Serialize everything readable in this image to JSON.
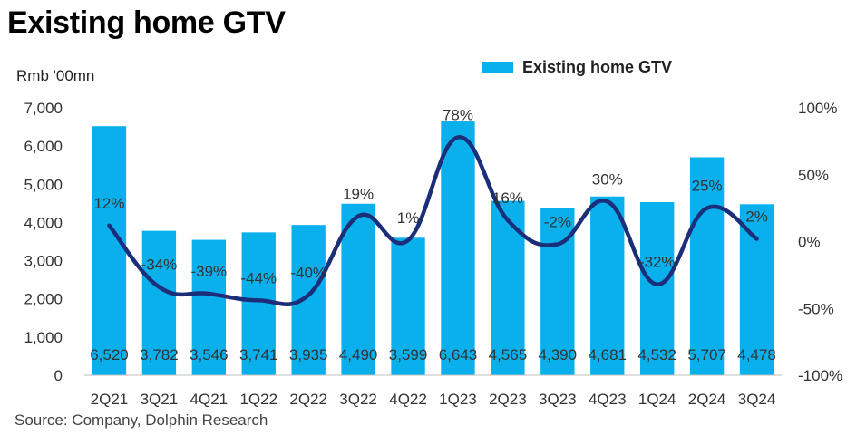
{
  "title": "Existing home GTV",
  "unit_label": "Rmb '00mn",
  "source": "Source: Company, Dolphin Research",
  "colors": {
    "bar": "#0ab0ec",
    "line": "#1a2e7a",
    "text": "#333333"
  },
  "chart_data": {
    "type": "bar",
    "categories": [
      "2Q21",
      "3Q21",
      "4Q21",
      "1Q22",
      "2Q22",
      "3Q22",
      "4Q22",
      "1Q23",
      "2Q23",
      "3Q23",
      "4Q23",
      "1Q24",
      "2Q24",
      "3Q24"
    ],
    "series": [
      {
        "name": "Existing home GTV",
        "type": "bar",
        "axis": "left",
        "values": [
          6520,
          3782,
          3546,
          3741,
          3935,
          4490,
          3599,
          6643,
          4565,
          4390,
          4681,
          4532,
          5707,
          4478
        ],
        "labels": [
          "6,520",
          "3,782",
          "3,546",
          "3,741",
          "3,935",
          "4,490",
          "3,599",
          "6,643",
          "4,565",
          "4,390",
          "4,681",
          "4,532",
          "5,707",
          "4,478"
        ]
      },
      {
        "type": "line",
        "axis": "right",
        "smooth": true,
        "values": [
          12,
          -34,
          -39,
          -44,
          -40,
          19,
          1,
          78,
          16,
          -2,
          30,
          -32,
          25,
          2
        ],
        "labels": [
          "12%",
          "-34%",
          "-39%",
          "-44%",
          "-40%",
          "19%",
          "1%",
          "78%",
          "16%",
          "-2%",
          "30%",
          "-32%",
          "25%",
          "2%"
        ]
      }
    ],
    "left_axis": {
      "min": 0,
      "max": 7000,
      "ticks": [
        0,
        1000,
        2000,
        3000,
        4000,
        5000,
        6000,
        7000
      ],
      "tick_labels": [
        "0",
        "1,000",
        "2,000",
        "3,000",
        "4,000",
        "5,000",
        "6,000",
        "7,000"
      ]
    },
    "right_axis": {
      "min": -100,
      "max": 100,
      "ticks": [
        -100,
        -50,
        0,
        50,
        100
      ],
      "tick_labels": [
        "-100%",
        "-50%",
        "0%",
        "50%",
        "100%"
      ]
    },
    "legend": {
      "position": "top-right",
      "entries": [
        "Existing home GTV"
      ]
    },
    "grid": false
  }
}
